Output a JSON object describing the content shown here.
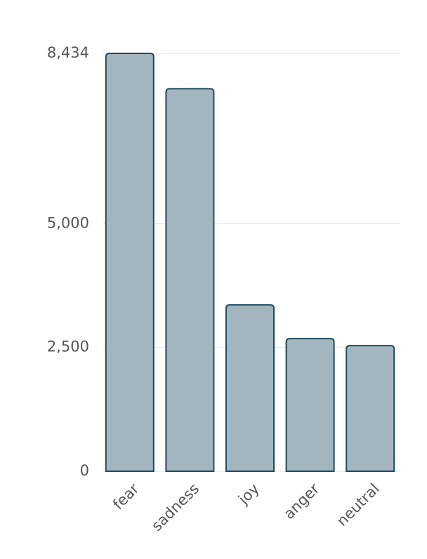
{
  "chart_data": {
    "type": "bar",
    "categories": [
      "fear",
      "sadness",
      "joy",
      "anger",
      "neutral"
    ],
    "values": [
      8434,
      7720,
      3357,
      2677,
      2535
    ],
    "color": "#a3b6bf",
    "edge_color": "#1f4a5e",
    "ylim": [
      0,
      8434
    ],
    "yticks": [
      0,
      {
        "value": 2500,
        "label": "2,500"
      },
      {
        "value": 5000,
        "label": "5,000"
      },
      {
        "value": 8434,
        "label": "8,434"
      }
    ],
    "grid": true
  }
}
